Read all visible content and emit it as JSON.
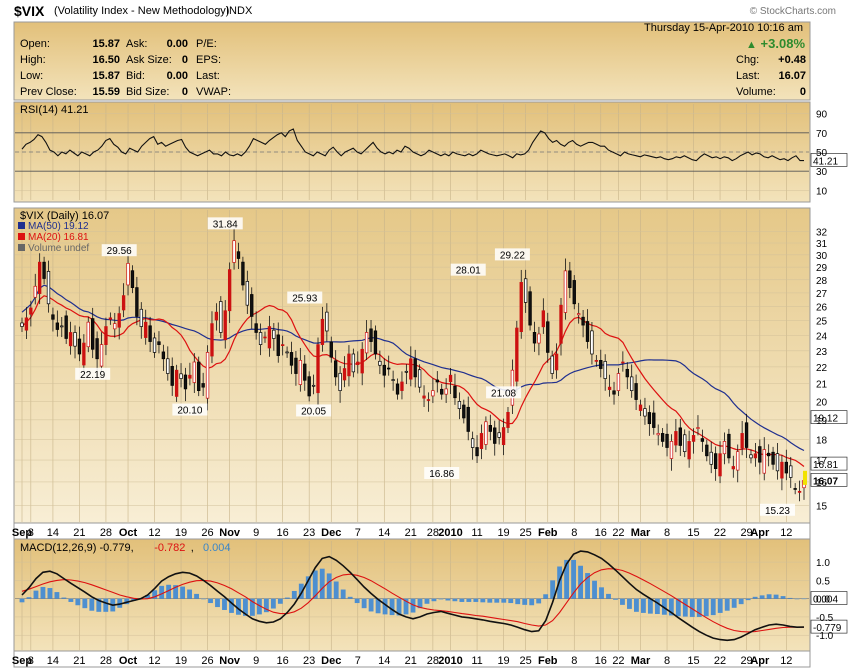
{
  "header": {
    "symbol": "$VIX",
    "description": "(Volatility Index - New Methodology)",
    "exchange": "INDX",
    "watermark": "© StockCharts.com",
    "datetime": "Thursday  15-Apr-2010  10:16 am",
    "change_pct": "+3.08%",
    "colors": {
      "panel_top": "#e6c98c",
      "panel_bottom": "#f6ebcf",
      "up": "#2e8b2e",
      "candle_down": "#cc1111",
      "ma50": "#1f2f8f",
      "ma20": "#dd1111",
      "macd_hist": "#4d8fd0"
    }
  },
  "quote": {
    "left": [
      {
        "label": "Open:",
        "value": "15.87"
      },
      {
        "label": "High:",
        "value": "16.50"
      },
      {
        "label": "Low:",
        "value": "15.87"
      },
      {
        "label": "Prev Close:",
        "value": "15.59"
      }
    ],
    "mid": [
      {
        "label": "Ask:",
        "value": "0.00"
      },
      {
        "label": "Ask Size:",
        "value": "0"
      },
      {
        "label": "Bid:",
        "value": "0.00"
      },
      {
        "label": "Bid Size:",
        "value": "0"
      }
    ],
    "right": [
      {
        "label": "P/E:",
        "value": ""
      },
      {
        "label": "EPS:",
        "value": ""
      },
      {
        "label": "Last:",
        "value": ""
      },
      {
        "label": "VWAP:",
        "value": ""
      }
    ],
    "far": [
      {
        "label": "Chg:",
        "value": "+0.48"
      },
      {
        "label": "Last:",
        "value": "16.07"
      },
      {
        "label": "Volume:",
        "value": "0"
      }
    ]
  },
  "chart_data": [
    {
      "type": "line",
      "name": "rsi",
      "title": "RSI(14) 41.21",
      "ylim": [
        0,
        100
      ],
      "yticks": [
        10,
        30,
        50,
        70,
        90
      ],
      "levels": [
        30,
        50,
        70
      ],
      "last_label": "41.21",
      "values": [
        53,
        58,
        60,
        63,
        68,
        66,
        60,
        52,
        50,
        46,
        50,
        48,
        52,
        49,
        46,
        50,
        48,
        46,
        50,
        52,
        56,
        62,
        64,
        58,
        55,
        50,
        48,
        54,
        52,
        50,
        56,
        60,
        64,
        66,
        58,
        60,
        56,
        58,
        60,
        62,
        63,
        55,
        50,
        48,
        46,
        48,
        50,
        52,
        48,
        48,
        46,
        50,
        47,
        46,
        48,
        46,
        50,
        56,
        64,
        62,
        60,
        58,
        62,
        65,
        68,
        70,
        66,
        72,
        74,
        62,
        56,
        50,
        48,
        46,
        50,
        48,
        46,
        52,
        55,
        50,
        46,
        50,
        52,
        54,
        50,
        48,
        52,
        56,
        60,
        54,
        50,
        48,
        50,
        48,
        52,
        50,
        56,
        54,
        50,
        48,
        46,
        48,
        52,
        50,
        48,
        46,
        48,
        46,
        50,
        48,
        47,
        46,
        48,
        46,
        48,
        52,
        50,
        48,
        47,
        46,
        47,
        48,
        46,
        44,
        48,
        47,
        48,
        52,
        60,
        66,
        72,
        70,
        64,
        60,
        62,
        58,
        56,
        60,
        62,
        58,
        56,
        58,
        60,
        60,
        58,
        56,
        56,
        52,
        50,
        48,
        46,
        50,
        48,
        47,
        46,
        45,
        47,
        46,
        45,
        44,
        45,
        43,
        42,
        43,
        45,
        44,
        46,
        44,
        42,
        41,
        45,
        48,
        46,
        44,
        45,
        43,
        45,
        44,
        41,
        43,
        46,
        48,
        50,
        47,
        49,
        48,
        45,
        44,
        46,
        44,
        42,
        43,
        41,
        44,
        46,
        41,
        41
      ]
    },
    {
      "type": "candlestick",
      "name": "price",
      "title": "$VIX (Daily) 16.07",
      "legend": [
        {
          "label": "MA(50) 19.12",
          "color": "#1f2f8f"
        },
        {
          "label": "MA(20) 16.81",
          "color": "#dd1111"
        },
        {
          "label": "Volume undef",
          "color": "#666666"
        }
      ],
      "ylim": [
        14.4,
        33.5
      ],
      "log_scale": true,
      "yticks": [
        15,
        16,
        17,
        18,
        19,
        20,
        21,
        22,
        23,
        24,
        25,
        26,
        27,
        28,
        29,
        30,
        31,
        32
      ],
      "last_labels": [
        {
          "value": 19.12,
          "text": "19.12"
        },
        {
          "value": 16.81,
          "text": "16.81"
        },
        {
          "value": 16.07,
          "text": "16.07"
        }
      ],
      "annotations": [
        {
          "text": "29.56",
          "x": 24,
          "value": 29.56,
          "pos": "above"
        },
        {
          "text": "22.19",
          "x": 17,
          "value": 22.19,
          "pos": "below"
        },
        {
          "text": "31.84",
          "x": 49,
          "value": 31.84,
          "pos": "above"
        },
        {
          "text": "20.10",
          "x": 41,
          "value": 20.1,
          "pos": "below"
        },
        {
          "text": "25.93",
          "x": 68,
          "value": 25.93,
          "pos": "above"
        },
        {
          "text": "20.05",
          "x": 70,
          "value": 20.05,
          "pos": "below"
        },
        {
          "text": "28.01",
          "x": 108,
          "value": 28.01,
          "pos": "above"
        },
        {
          "text": "16.86",
          "x": 101,
          "value": 16.86,
          "pos": "below"
        },
        {
          "text": "29.22",
          "x": 119,
          "value": 29.22,
          "pos": "above"
        },
        {
          "text": "21.08",
          "x": 116,
          "value": 21.08,
          "pos": "below"
        },
        {
          "text": "15.23",
          "x": 182,
          "value": 15.23,
          "pos": "below"
        }
      ],
      "closes": [
        24.6,
        25.2,
        25.9,
        27.5,
        29.4,
        28.1,
        26.2,
        25.1,
        24.4,
        24.6,
        23.8,
        24.2,
        23.3,
        22.8,
        23.5,
        24.9,
        23.1,
        22.5,
        23.4,
        24.6,
        25.2,
        24.8,
        25.5,
        26.8,
        29.3,
        27.4,
        25.3,
        24.6,
        24.9,
        23.6,
        22.9,
        23.4,
        22.5,
        21.6,
        20.9,
        21.8,
        21.3,
        20.7,
        21.5,
        22.3,
        20.6,
        20.8,
        22.9,
        24.8,
        25.6,
        24.2,
        25.7,
        28.8,
        31.2,
        29.7,
        27.6,
        26.1,
        25.3,
        24.2,
        23.4,
        23.9,
        24.6,
        23.8,
        22.7,
        23.4,
        22.9,
        22.1,
        21.6,
        22.4,
        21.2,
        20.3,
        20.9,
        23.4,
        25.1,
        24.3,
        22.6,
        21.4,
        20.6,
        21.9,
        22.8,
        21.7,
        22.3,
        23.1,
        24.2,
        23.6,
        22.8,
        22.1,
        21.5,
        21.9,
        21.2,
        20.4,
        21.1,
        21.7,
        22.5,
        21.4,
        20.8,
        20.3,
        20.1,
        20.6,
        21.1,
        20.4,
        20.7,
        21.5,
        20.2,
        19.6,
        19.1,
        18.4,
        17.6,
        17.2,
        18.3,
        18.9,
        18.4,
        17.8,
        18.1,
        18.6,
        19.4,
        21.8,
        24.5,
        27.8,
        26.3,
        24.7,
        23.5,
        24.1,
        25.7,
        22.9,
        21.6,
        22.8,
        26.1,
        28.7,
        27.4,
        26.2,
        25.5,
        24.7,
        23.6,
        22.8,
        22.4,
        21.9,
        21.3,
        20.8,
        20.4,
        21.6,
        22.3,
        21.4,
        20.6,
        20.1,
        19.8,
        19.2,
        18.8,
        18.6,
        18.3,
        17.9,
        17.6,
        17.9,
        18.4,
        17.7,
        17.4,
        17.9,
        18.2,
        18.6,
        17.9,
        17.2,
        16.8,
        16.6,
        17.3,
        17.9,
        17.1,
        16.7,
        17.4,
        18.3,
        17.6,
        17.1,
        17.3,
        16.9,
        17.5,
        17.2,
        16.8,
        16.5,
        16.9,
        16.4,
        16.2,
        15.7,
        15.59,
        16.07
      ],
      "x_labels": [
        {
          "x": 0,
          "text": "Sep"
        },
        {
          "x": 2,
          "text": "8"
        },
        {
          "x": 6,
          "text": "14"
        },
        {
          "x": 11,
          "text": "21"
        },
        {
          "x": 16,
          "text": "28"
        },
        {
          "x": 20,
          "text": "Oct"
        },
        {
          "x": 25,
          "text": "12"
        },
        {
          "x": 30,
          "text": "19"
        },
        {
          "x": 35,
          "text": "26"
        },
        {
          "x": 40,
          "text": "Nov"
        },
        {
          "x": 45,
          "text": "9"
        },
        {
          "x": 50,
          "text": "16"
        },
        {
          "x": 55,
          "text": "23"
        },
        {
          "x": 59,
          "text": "Dec"
        },
        {
          "x": 64,
          "text": "7"
        },
        {
          "x": 69,
          "text": "14"
        },
        {
          "x": 74,
          "text": "21"
        },
        {
          "x": 78,
          "text": "28"
        },
        {
          "x": 82,
          "text": "2010"
        },
        {
          "x": 87,
          "text": "11"
        },
        {
          "x": 92,
          "text": "19"
        },
        {
          "x": 96,
          "text": "25"
        },
        {
          "x": 100,
          "text": "Feb"
        },
        {
          "x": 105,
          "text": "8"
        },
        {
          "x": 110,
          "text": "16"
        },
        {
          "x": 114,
          "text": "22"
        },
        {
          "x": 118,
          "text": "Mar"
        },
        {
          "x": 123,
          "text": "8"
        },
        {
          "x": 128,
          "text": "15"
        },
        {
          "x": 133,
          "text": "22"
        },
        {
          "x": 138,
          "text": "29"
        },
        {
          "x": 141,
          "text": "Apr"
        },
        {
          "x": 146,
          "text": "12"
        }
      ]
    },
    {
      "type": "line",
      "name": "macd",
      "title": "MACD(12,26,9) -0.779, -0.782, 0.004",
      "title_parts": [
        "MACD(12,26,9) -0.779, ",
        "-0.782",
        ", ",
        "0.004"
      ],
      "ylim": [
        -1.35,
        1.55
      ],
      "yticks": [
        -1.0,
        -0.5,
        0.0,
        0.5,
        1.0
      ],
      "ytick_labels": [
        "-1.0",
        "-0.5",
        "0.0",
        "0.5",
        "1.0"
      ],
      "last_labels": [
        {
          "value": 0.004,
          "text": "0.004"
        },
        {
          "value": -0.779,
          "text": "-0.779"
        }
      ],
      "macd": [
        0.1,
        0.3,
        0.55,
        0.72,
        0.75,
        0.68,
        0.55,
        0.42,
        0.3,
        0.18,
        0.05,
        -0.05,
        -0.12,
        -0.18,
        -0.15,
        -0.1,
        -0.05,
        0.0,
        0.1,
        0.28,
        0.48,
        0.6,
        0.68,
        0.72,
        0.7,
        0.62,
        0.5,
        0.36,
        0.2,
        0.05,
        -0.12,
        -0.28,
        -0.42,
        -0.55,
        -0.62,
        -0.66,
        -0.64,
        -0.55,
        -0.38,
        -0.15,
        0.15,
        0.5,
        0.85,
        1.1,
        1.15,
        1.05,
        0.9,
        0.72,
        0.52,
        0.32,
        0.14,
        -0.02,
        -0.16,
        -0.3,
        -0.42,
        -0.5,
        -0.55,
        -0.5,
        -0.42,
        -0.38,
        -0.35,
        -0.4,
        -0.45,
        -0.5,
        -0.52,
        -0.55,
        -0.58,
        -0.62,
        -0.65,
        -0.68,
        -0.72,
        -0.78,
        -0.85,
        -0.9,
        -0.88,
        -0.6,
        -0.1,
        0.5,
        0.95,
        1.22,
        1.3,
        1.28,
        1.2,
        1.1,
        0.95,
        0.78,
        0.6,
        0.42,
        0.25,
        0.12,
        0.0,
        -0.12,
        -0.25,
        -0.38,
        -0.52,
        -0.65,
        -0.78,
        -0.9,
        -1.0,
        -1.08,
        -1.12,
        -1.14,
        -1.12,
        -1.05,
        -0.95,
        -0.85,
        -0.78,
        -0.72,
        -0.7,
        -0.72,
        -0.76,
        -0.78,
        -0.779
      ],
      "signal": [
        0.2,
        0.26,
        0.33,
        0.4,
        0.46,
        0.5,
        0.52,
        0.51,
        0.48,
        0.44,
        0.38,
        0.31,
        0.24,
        0.17,
        0.1,
        0.05,
        0.01,
        -0.01,
        0.0,
        0.05,
        0.13,
        0.22,
        0.31,
        0.39,
        0.45,
        0.49,
        0.5,
        0.48,
        0.43,
        0.36,
        0.27,
        0.16,
        0.05,
        -0.08,
        -0.19,
        -0.29,
        -0.37,
        -0.41,
        -0.41,
        -0.36,
        -0.26,
        -0.11,
        0.08,
        0.28,
        0.46,
        0.58,
        0.65,
        0.67,
        0.64,
        0.58,
        0.49,
        0.38,
        0.27,
        0.15,
        0.04,
        -0.07,
        -0.17,
        -0.24,
        -0.28,
        -0.31,
        -0.33,
        -0.35,
        -0.38,
        -0.41,
        -0.43,
        -0.46,
        -0.48,
        -0.51,
        -0.54,
        -0.57,
        -0.6,
        -0.63,
        -0.68,
        -0.72,
        -0.75,
        -0.72,
        -0.6,
        -0.38,
        -0.11,
        0.16,
        0.4,
        0.58,
        0.71,
        0.79,
        0.82,
        0.81,
        0.77,
        0.7,
        0.61,
        0.51,
        0.41,
        0.3,
        0.19,
        0.08,
        -0.04,
        -0.16,
        -0.28,
        -0.4,
        -0.52,
        -0.63,
        -0.73,
        -0.81,
        -0.87,
        -0.9,
        -0.91,
        -0.9,
        -0.87,
        -0.84,
        -0.81,
        -0.79,
        -0.78,
        -0.78,
        -0.782
      ]
    }
  ]
}
